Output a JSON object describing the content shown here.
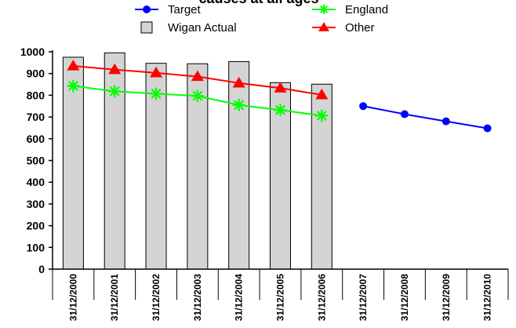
{
  "chart_data": {
    "type": "bar",
    "title": "causes at all ages",
    "categories": [
      "31/12/2000",
      "31/12/2001",
      "31/12/2002",
      "31/12/2003",
      "31/12/2004",
      "31/12/2005",
      "31/12/2006",
      "31/12/2007",
      "31/12/2008",
      "31/12/2009",
      "31/12/2010"
    ],
    "y_ticks": [
      "0",
      "100",
      "200",
      "300",
      "400",
      "500",
      "600",
      "700",
      "800",
      "900",
      "1000"
    ],
    "ylim": [
      0,
      1000
    ],
    "grid": false,
    "legend_position": "top",
    "series": [
      {
        "name": "Target",
        "kind": "line",
        "color": "#0000ff",
        "marker": "circle",
        "values": [
          null,
          null,
          null,
          null,
          null,
          null,
          null,
          750,
          713,
          680,
          648
        ]
      },
      {
        "name": "England",
        "kind": "line",
        "color": "#00ff00",
        "marker": "star",
        "values": [
          843,
          818,
          807,
          797,
          755,
          732,
          706,
          null,
          null,
          null,
          null
        ]
      },
      {
        "name": "Wigan Actual",
        "kind": "bar",
        "color": "#d4d4d4",
        "values": [
          975,
          995,
          947,
          945,
          955,
          858,
          851,
          null,
          null,
          null,
          null
        ]
      },
      {
        "name": "Other",
        "kind": "line",
        "color": "#ff0000",
        "marker": "triangle",
        "values": [
          935,
          918,
          903,
          886,
          856,
          833,
          802,
          null,
          null,
          null,
          null
        ]
      }
    ]
  }
}
